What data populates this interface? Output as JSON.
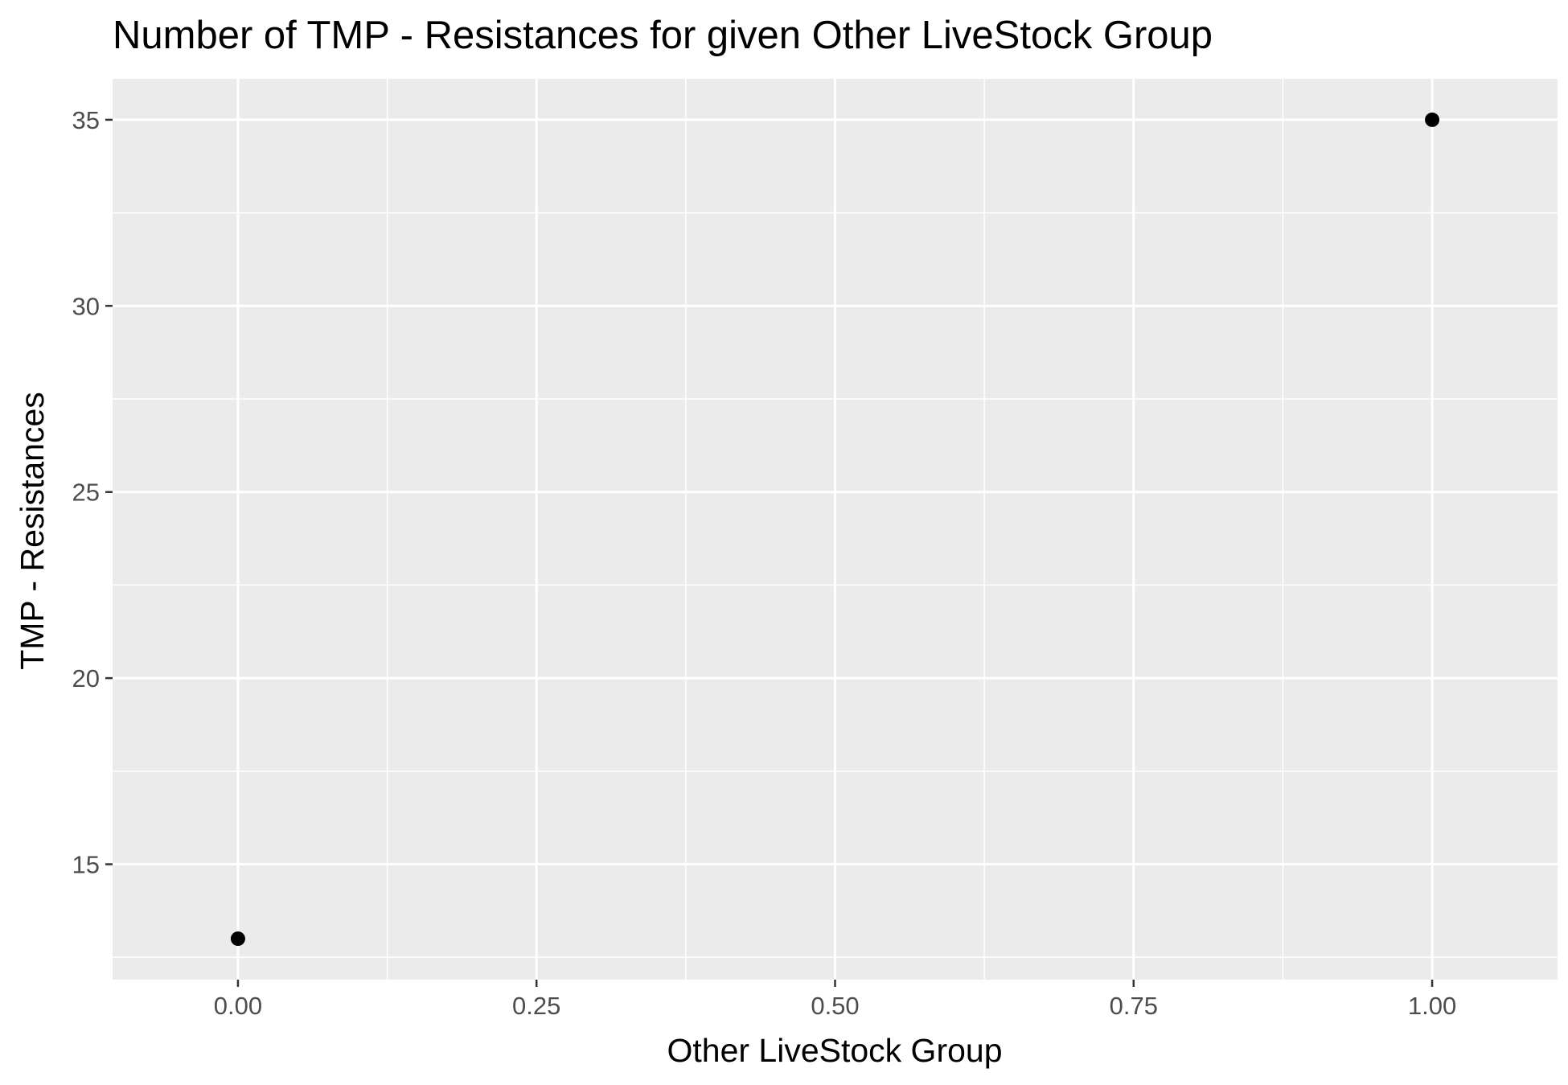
{
  "chart_data": {
    "type": "scatter",
    "title": "Number of TMP - Resistances for given Other LiveStock Group",
    "xlabel": "Other LiveStock Group",
    "ylabel": "TMP - Resistances",
    "x": [
      0,
      1
    ],
    "y": [
      13,
      35
    ],
    "xlim": [
      -0.105,
      1.105
    ],
    "ylim": [
      11.9,
      36.1
    ],
    "xticks": [
      0,
      0.25,
      0.5,
      0.75,
      1
    ],
    "xtick_labels": [
      "0.00",
      "0.25",
      "0.50",
      "0.75",
      "1.00"
    ],
    "yticks": [
      15,
      20,
      25,
      30,
      35
    ],
    "ytick_labels": [
      "15",
      "20",
      "25",
      "30",
      "35"
    ],
    "grid": true,
    "legend": "none",
    "colors": {
      "panel_background": "#ebebeb",
      "grid_line": "#ffffff",
      "point": "#000000",
      "tick_label": "#4d4d4d",
      "tick_mark": "#333333"
    }
  }
}
